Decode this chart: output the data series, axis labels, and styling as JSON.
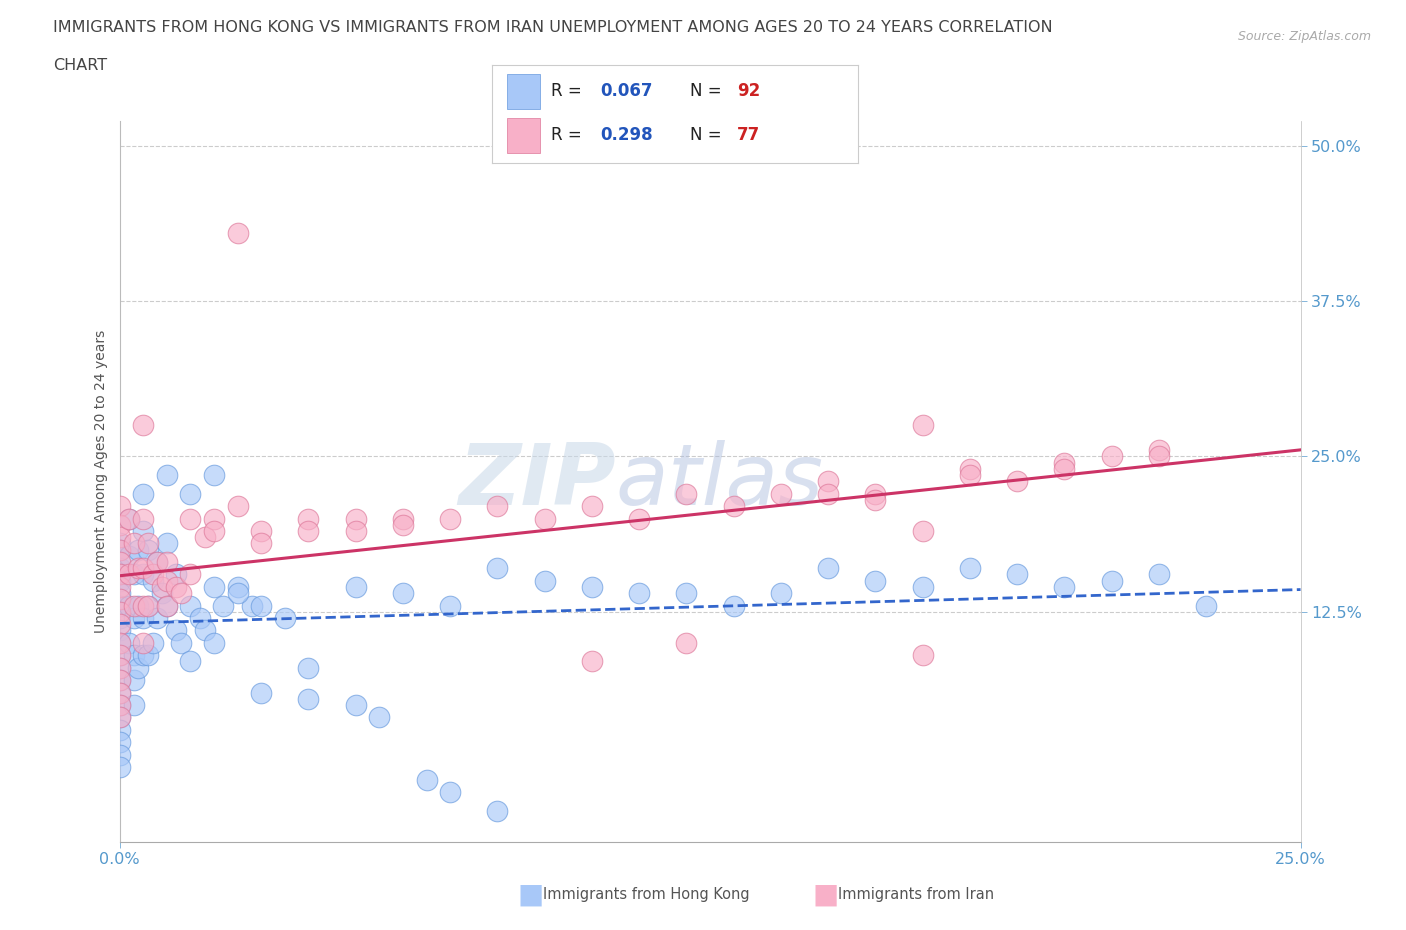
{
  "title_line1": "IMMIGRANTS FROM HONG KONG VS IMMIGRANTS FROM IRAN UNEMPLOYMENT AMONG AGES 20 TO 24 YEARS CORRELATION",
  "title_line2": "CHART",
  "source_text": "Source: ZipAtlas.com",
  "ylabel": "Unemployment Among Ages 20 to 24 years",
  "xlim": [
    0.0,
    0.25
  ],
  "ylim": [
    -0.06,
    0.52
  ],
  "ytick_vals": [
    0.125,
    0.25,
    0.375,
    0.5
  ],
  "ytick_labels": [
    "12.5%",
    "25.0%",
    "37.5%",
    "50.0%"
  ],
  "xtick_vals": [
    0.0,
    0.25
  ],
  "xtick_labels": [
    "0.0%",
    "25.0%"
  ],
  "hk_color": "#a8c8f8",
  "hk_edge_color": "#6699dd",
  "iran_color": "#f8b0c8",
  "iran_edge_color": "#dd7799",
  "hk_R": 0.067,
  "hk_N": 92,
  "iran_R": 0.298,
  "iran_N": 77,
  "hk_line_color": "#3366cc",
  "iran_line_color": "#cc3366",
  "tick_label_color": "#5599cc",
  "legend_R_color": "#2255bb",
  "legend_N_color": "#cc2222",
  "watermark_text": "ZIPatlas",
  "background_color": "#ffffff",
  "grid_color": "#cccccc",
  "title_color": "#444444",
  "hk_scatter_x": [
    0.0,
    0.0,
    0.0,
    0.0,
    0.0,
    0.0,
    0.0,
    0.0,
    0.0,
    0.0,
    0.0,
    0.0,
    0.0,
    0.0,
    0.0,
    0.0,
    0.0,
    0.0,
    0.0,
    0.0,
    0.002,
    0.002,
    0.002,
    0.002,
    0.003,
    0.003,
    0.003,
    0.003,
    0.003,
    0.004,
    0.004,
    0.004,
    0.005,
    0.005,
    0.005,
    0.005,
    0.005,
    0.006,
    0.006,
    0.006,
    0.007,
    0.007,
    0.008,
    0.008,
    0.009,
    0.01,
    0.01,
    0.01,
    0.012,
    0.012,
    0.013,
    0.015,
    0.015,
    0.017,
    0.018,
    0.02,
    0.02,
    0.022,
    0.025,
    0.028,
    0.03,
    0.035,
    0.04,
    0.05,
    0.06,
    0.07,
    0.08,
    0.09,
    0.1,
    0.11,
    0.12,
    0.13,
    0.14,
    0.15,
    0.16,
    0.17,
    0.18,
    0.19,
    0.2,
    0.21,
    0.22,
    0.23,
    0.03,
    0.04,
    0.05,
    0.055,
    0.065,
    0.07,
    0.08,
    0.025,
    0.02,
    0.015
  ],
  "hk_scatter_y": [
    0.18,
    0.175,
    0.16,
    0.155,
    0.15,
    0.14,
    0.13,
    0.12,
    0.11,
    0.1,
    0.09,
    0.08,
    0.07,
    0.06,
    0.05,
    0.04,
    0.03,
    0.02,
    0.01,
    0.0,
    0.2,
    0.17,
    0.13,
    0.1,
    0.155,
    0.12,
    0.09,
    0.07,
    0.05,
    0.175,
    0.13,
    0.08,
    0.22,
    0.19,
    0.155,
    0.12,
    0.09,
    0.175,
    0.13,
    0.09,
    0.15,
    0.1,
    0.165,
    0.12,
    0.14,
    0.235,
    0.18,
    0.13,
    0.155,
    0.11,
    0.1,
    0.22,
    0.13,
    0.12,
    0.11,
    0.235,
    0.145,
    0.13,
    0.145,
    0.13,
    0.13,
    0.12,
    0.08,
    0.145,
    0.14,
    0.13,
    0.16,
    0.15,
    0.145,
    0.14,
    0.14,
    0.13,
    0.14,
    0.16,
    0.15,
    0.145,
    0.16,
    0.155,
    0.145,
    0.15,
    0.155,
    0.13,
    0.06,
    0.055,
    0.05,
    0.04,
    -0.01,
    -0.02,
    -0.035,
    0.14,
    0.1,
    0.085
  ],
  "iran_scatter_x": [
    0.0,
    0.0,
    0.0,
    0.0,
    0.0,
    0.0,
    0.0,
    0.0,
    0.0,
    0.0,
    0.0,
    0.0,
    0.0,
    0.0,
    0.0,
    0.0,
    0.0,
    0.002,
    0.002,
    0.003,
    0.003,
    0.004,
    0.005,
    0.005,
    0.005,
    0.005,
    0.005,
    0.006,
    0.006,
    0.007,
    0.008,
    0.009,
    0.01,
    0.01,
    0.01,
    0.012,
    0.013,
    0.015,
    0.015,
    0.018,
    0.02,
    0.02,
    0.025,
    0.025,
    0.03,
    0.03,
    0.04,
    0.04,
    0.05,
    0.05,
    0.06,
    0.06,
    0.07,
    0.08,
    0.09,
    0.1,
    0.11,
    0.12,
    0.13,
    0.14,
    0.15,
    0.16,
    0.17,
    0.17,
    0.18,
    0.19,
    0.2,
    0.21,
    0.22,
    0.1,
    0.12,
    0.15,
    0.16,
    0.18,
    0.2,
    0.22,
    0.17
  ],
  "iran_scatter_y": [
    0.21,
    0.195,
    0.185,
    0.175,
    0.165,
    0.155,
    0.145,
    0.135,
    0.125,
    0.115,
    0.1,
    0.09,
    0.08,
    0.07,
    0.06,
    0.05,
    0.04,
    0.2,
    0.155,
    0.18,
    0.13,
    0.16,
    0.275,
    0.2,
    0.16,
    0.13,
    0.1,
    0.18,
    0.13,
    0.155,
    0.165,
    0.145,
    0.165,
    0.15,
    0.13,
    0.145,
    0.14,
    0.2,
    0.155,
    0.185,
    0.2,
    0.19,
    0.43,
    0.21,
    0.19,
    0.18,
    0.2,
    0.19,
    0.2,
    0.19,
    0.2,
    0.195,
    0.2,
    0.21,
    0.2,
    0.21,
    0.2,
    0.22,
    0.21,
    0.22,
    0.23,
    0.22,
    0.275,
    0.09,
    0.24,
    0.23,
    0.245,
    0.25,
    0.255,
    0.085,
    0.1,
    0.22,
    0.215,
    0.235,
    0.24,
    0.25,
    0.19
  ]
}
